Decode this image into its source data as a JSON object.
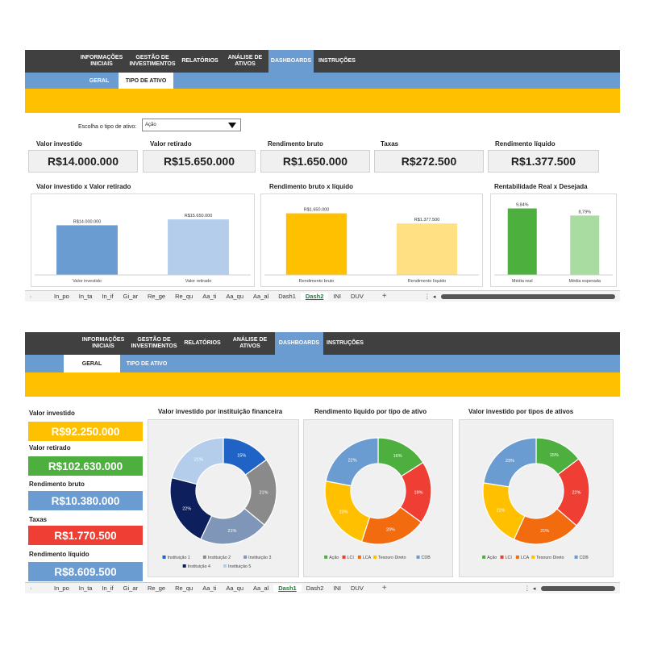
{
  "nav": {
    "items": [
      "INFORMAÇÕES\nINICIAIS",
      "GESTÃO DE\nINVESTIMENTOS",
      "RELATÓRIOS",
      "ANÁLISE DE\nATIVOS",
      "DASHBOARDS",
      "INSTRUÇÕES"
    ]
  },
  "panel1": {
    "subtabs": [
      "GERAL",
      "TIPO DE ATIVO"
    ],
    "selector_label": "Escolha o tipo de ativo:",
    "selector_value": "Ação",
    "kpis": [
      {
        "title": "Valor investido",
        "value": "R$14.000.000"
      },
      {
        "title": "Valor retirado",
        "value": "R$15.650.000"
      },
      {
        "title": "Rendimento bruto",
        "value": "R$1.650.000"
      },
      {
        "title": "Taxas",
        "value": "R$272.500"
      },
      {
        "title": "Rendimento líquido",
        "value": "R$1.377.500"
      }
    ],
    "chart_titles": [
      "Valor investido x Valor retirado",
      "Rendimento bruto x líquido",
      "Rentabilidade Real x Desejada"
    ],
    "sheet_tabs": [
      "In_po",
      "In_ta",
      "In_if",
      "Gi_ar",
      "Re_ge",
      "Re_qu",
      "Aa_ti",
      "Aa_qu",
      "Aa_al",
      "Dash1",
      "Dash2",
      "INI",
      "DUV"
    ],
    "active_tab": "Dash2"
  },
  "panel2": {
    "subtabs": [
      "GERAL",
      "TIPO DE ATIVO"
    ],
    "kpis": [
      {
        "title": "Valor investido",
        "value": "R$92.250.000",
        "color": "#ffc000"
      },
      {
        "title": "Valor retirado",
        "value": "R$102.630.000",
        "color": "#4caf3e"
      },
      {
        "title": "Rendimento bruto",
        "value": "R$10.380.000",
        "color": "#6a9bd1"
      },
      {
        "title": "Taxas",
        "value": "R$1.770.500",
        "color": "#ef3e33"
      },
      {
        "title": "Rendimento líquido",
        "value": "R$8.609.500",
        "color": "#6a9bd1"
      }
    ],
    "chart_titles": [
      "Valor investido por instituição financeira",
      "Rendimento líquido por tipo de ativo",
      "Valor investido por tipos de ativos"
    ],
    "sheet_tabs": [
      "In_po",
      "In_ta",
      "In_if",
      "Gi_ar",
      "Re_ge",
      "Re_qu",
      "Aa_ti",
      "Aa_qu",
      "Aa_al",
      "Dash1",
      "Dash2",
      "INI",
      "DUV"
    ],
    "active_tab": "Dash1"
  },
  "chart_data": [
    {
      "type": "bar",
      "categories": [
        "Valor investido",
        "Valor retirado"
      ],
      "values": [
        14000000,
        15650000
      ],
      "labels": [
        "R$14.000.000",
        "R$15.650.000"
      ],
      "colors": [
        "#6a9bd1",
        "#b4cdea"
      ],
      "ylim": [
        0,
        20000000
      ]
    },
    {
      "type": "bar",
      "categories": [
        "Rendimento bruto",
        "Rendimento líquido"
      ],
      "values": [
        1650000,
        1377500
      ],
      "labels": [
        "R$1.650.000",
        "R$1.377.500"
      ],
      "colors": [
        "#ffc000",
        "#ffe083"
      ],
      "ylim": [
        0,
        1900000
      ]
    },
    {
      "type": "bar",
      "categories": [
        "Média real",
        "Média esperada"
      ],
      "values": [
        9.84,
        8.79
      ],
      "labels": [
        "9,84%",
        "8,79%"
      ],
      "colors": [
        "#4caf3e",
        "#a8dca0"
      ],
      "ylim": [
        0,
        10.5
      ]
    },
    {
      "type": "pie",
      "categories": [
        "Instituição 1",
        "Instituição 2",
        "Instituição 3",
        "Instituição 4",
        "Instituição 5"
      ],
      "values": [
        15,
        21,
        21,
        22,
        21
      ],
      "colors": [
        "#1f63c6",
        "#8a8a8a",
        "#7f96b8",
        "#0d1f5c",
        "#b4cdea"
      ],
      "legend": [
        "Instituição 1",
        "Instituição 2",
        "Instituição 3",
        "Instituição 4",
        "Instituição 5"
      ]
    },
    {
      "type": "pie",
      "categories": [
        "Ação",
        "LCI",
        "LCA",
        "Tesouro Direto",
        "CDB"
      ],
      "values": [
        16,
        19,
        20,
        23,
        22
      ],
      "colors": [
        "#4caf3e",
        "#ef3e33",
        "#f26b0f",
        "#ffc000",
        "#6a9bd1"
      ],
      "legend": [
        "Ação",
        "LCI",
        "LCA",
        "Tesouro Direto",
        "CDB"
      ]
    },
    {
      "type": "pie",
      "categories": [
        "Ação",
        "LCI",
        "LCA",
        "Tesouro Direto",
        "CDB"
      ],
      "values": [
        15,
        22,
        21,
        21,
        23
      ],
      "colors": [
        "#4caf3e",
        "#ef3e33",
        "#f26b0f",
        "#ffc000",
        "#6a9bd1"
      ],
      "legend": [
        "Ação",
        "LCI",
        "LCA",
        "Tesouro Direto",
        "CDB"
      ]
    }
  ]
}
